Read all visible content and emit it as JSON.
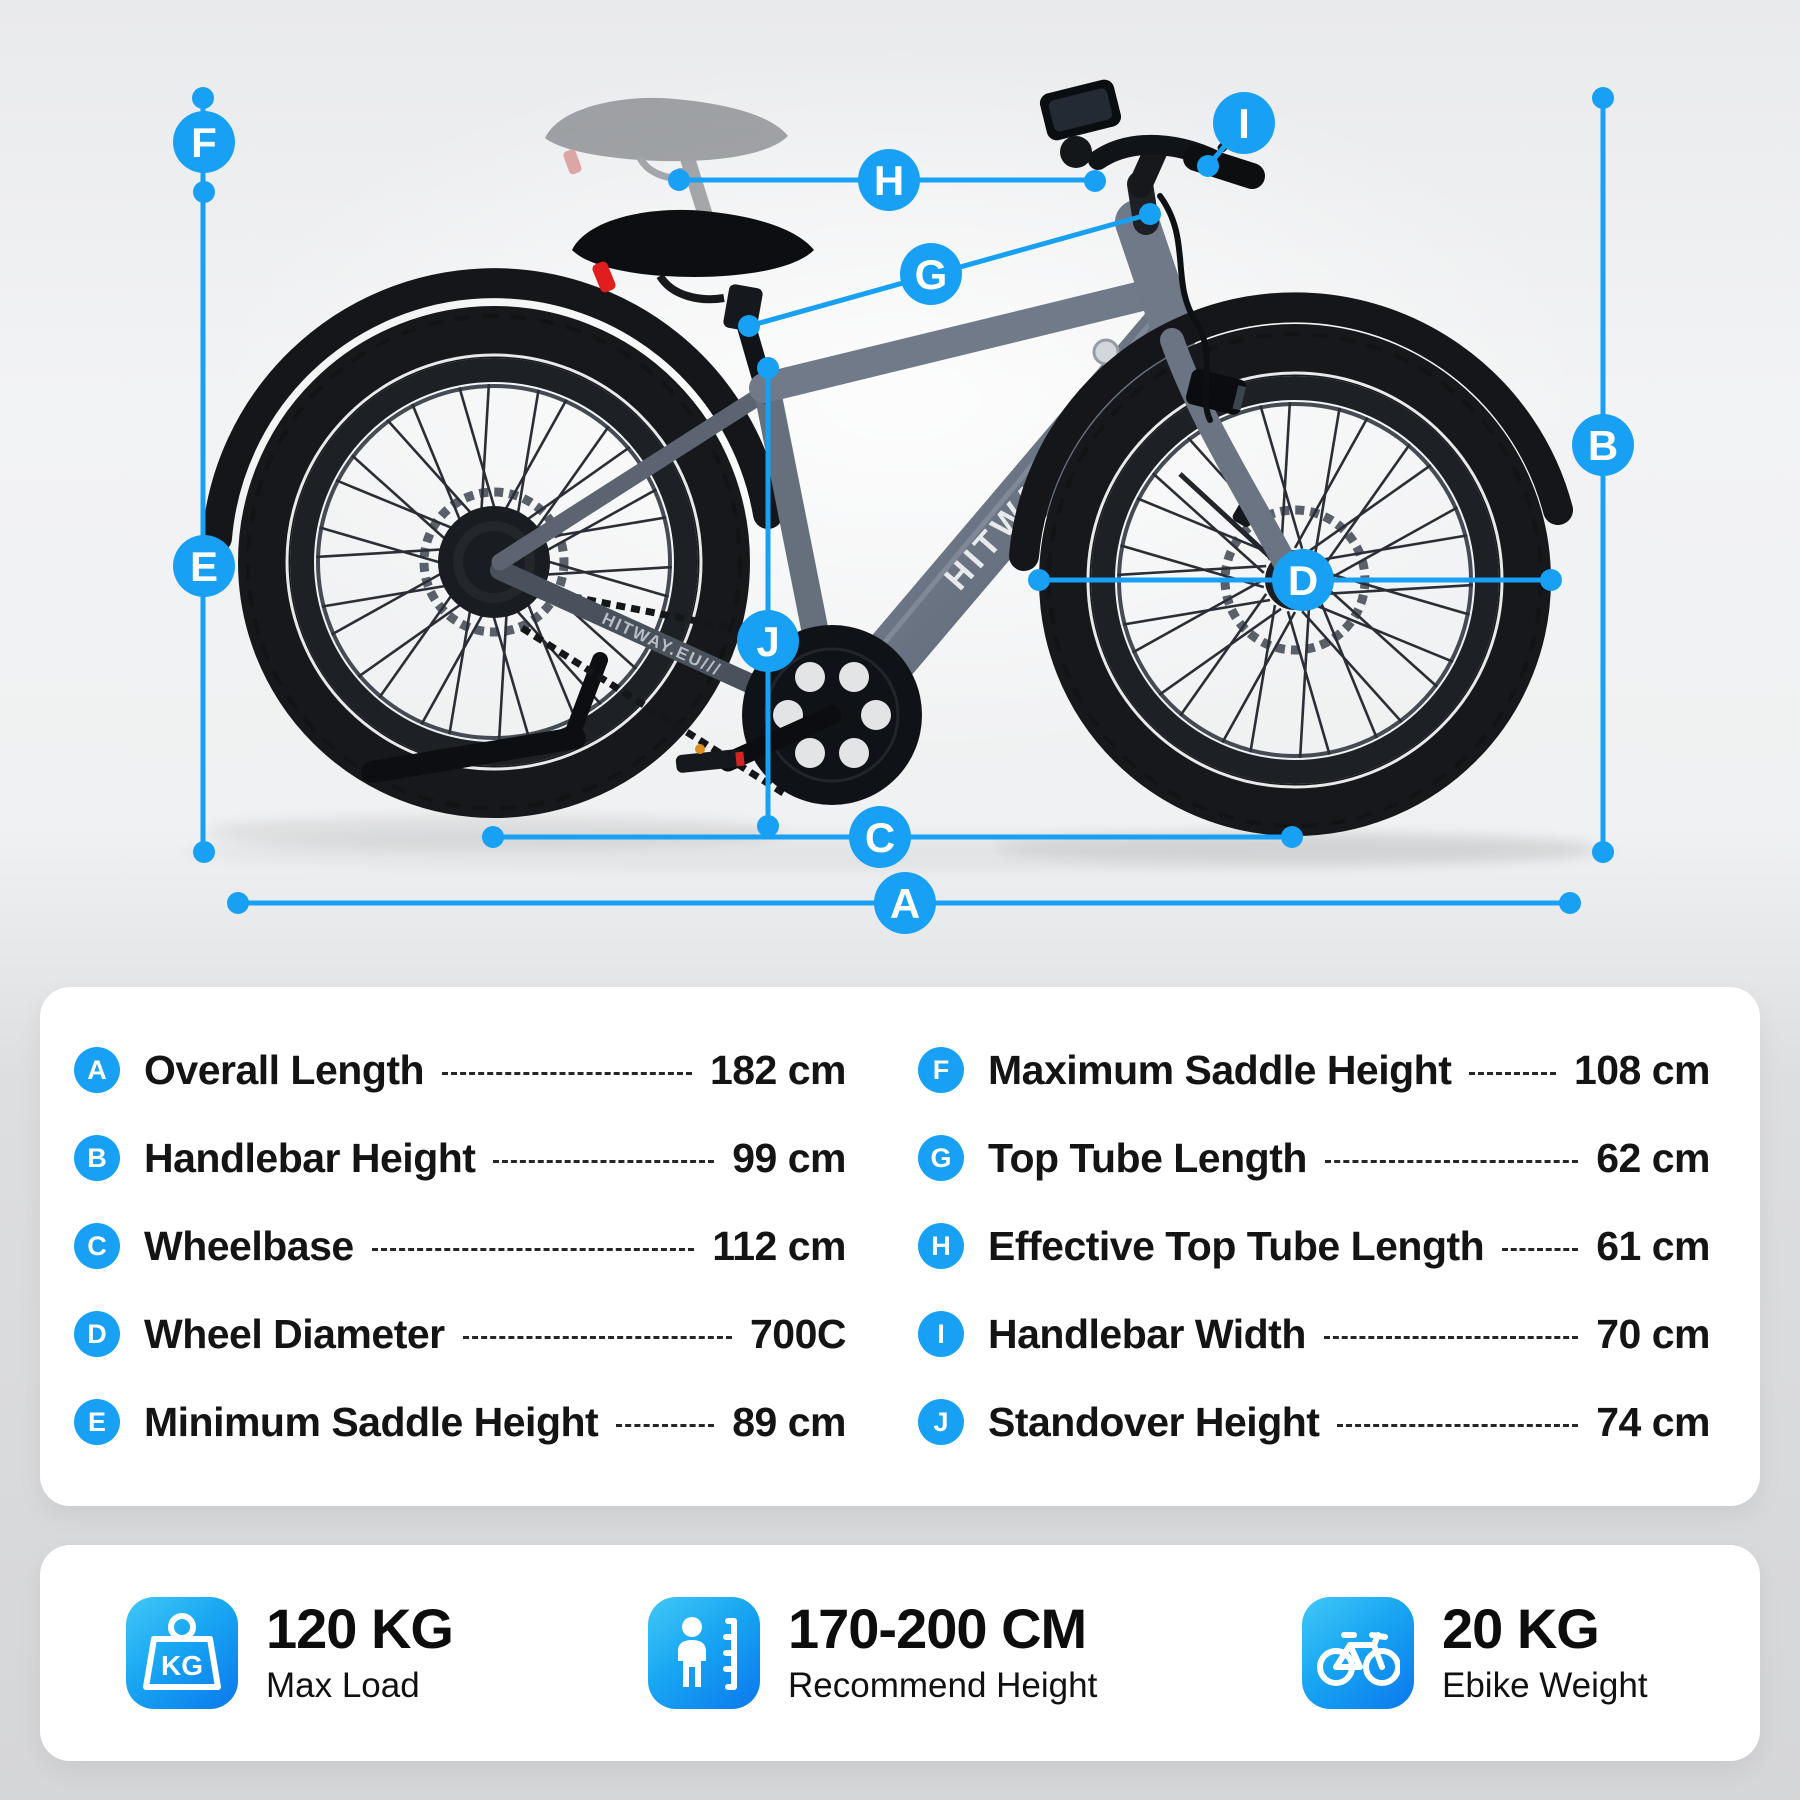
{
  "diagram": {
    "marker_letters": [
      "A",
      "B",
      "C",
      "D",
      "E",
      "F",
      "G",
      "H",
      "I",
      "J"
    ],
    "frame_logo": "HITWAY",
    "chainstay_label": "HITWAY.EU///"
  },
  "specs": {
    "left": [
      {
        "key": "A",
        "label": "Overall Length",
        "value": "182 cm"
      },
      {
        "key": "B",
        "label": "Handlebar Height",
        "value": "99 cm"
      },
      {
        "key": "C",
        "label": "Wheelbase",
        "value": "112 cm"
      },
      {
        "key": "D",
        "label": "Wheel Diameter",
        "value": "700C"
      },
      {
        "key": "E",
        "label": "Minimum Saddle Height",
        "value": "89 cm"
      }
    ],
    "right": [
      {
        "key": "F",
        "label": "Maximum Saddle Height",
        "value": "108 cm"
      },
      {
        "key": "G",
        "label": "Top Tube Length",
        "value": "62 cm"
      },
      {
        "key": "H",
        "label": "Effective Top Tube Length",
        "value": "61 cm"
      },
      {
        "key": "I",
        "label": "Handlebar Width",
        "value": "70 cm"
      },
      {
        "key": "J",
        "label": "Standover Height",
        "value": "74 cm"
      }
    ]
  },
  "badges": [
    {
      "icon": "weight-kg-icon",
      "icon_text": "KG",
      "value": "120 KG",
      "label": "Max Load"
    },
    {
      "icon": "height-person-icon",
      "icon_text": "",
      "value": "170-200 CM",
      "label": "Recommend Height"
    },
    {
      "icon": "bicycle-icon",
      "icon_text": "",
      "value": "20 KG",
      "label": "Ebike Weight"
    }
  ],
  "colors": {
    "accent": "#18a0f4",
    "icon_gradient_start": "#41c9f7",
    "icon_gradient_end": "#0b78ee",
    "frame_gray": "#6b7584"
  }
}
